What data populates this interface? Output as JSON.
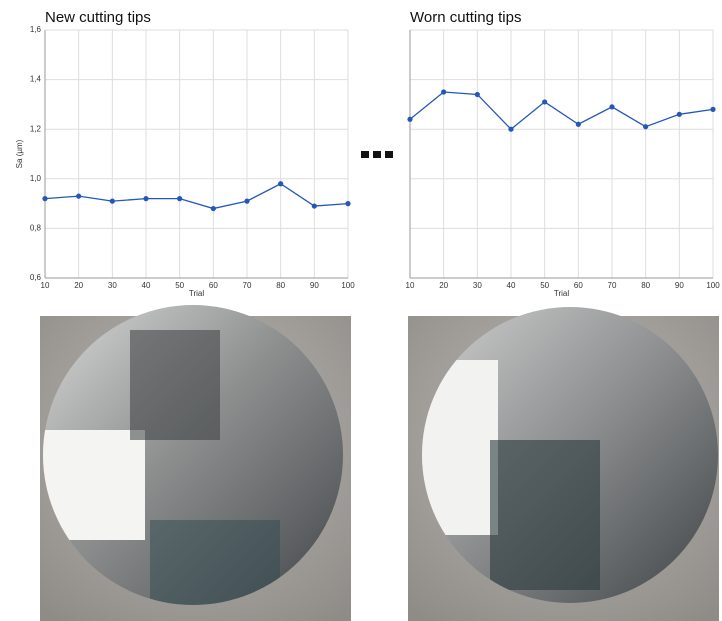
{
  "chart_data": [
    {
      "type": "line",
      "title": "New cutting tips",
      "y_label": "Sa (µm)",
      "x_label": "Trial",
      "x": [
        10,
        20,
        30,
        40,
        50,
        60,
        70,
        80,
        90,
        100
      ],
      "values": [
        0.92,
        0.93,
        0.91,
        0.92,
        0.92,
        0.88,
        0.91,
        0.98,
        0.89,
        0.9
      ],
      "color": "#2457b8",
      "xlim": [
        10,
        100
      ],
      "xticks": [
        10,
        20,
        30,
        40,
        50,
        60,
        70,
        80,
        90,
        100
      ],
      "ylim": [
        0.6,
        1.6
      ],
      "yticks": [
        {
          "value": 0.6,
          "label": "0,6"
        },
        {
          "value": 0.8,
          "label": "0,8"
        },
        {
          "value": 1.0,
          "label": "1,0"
        },
        {
          "value": 1.2,
          "label": "1,2"
        },
        {
          "value": 1.4,
          "label": "1,4"
        },
        {
          "value": 1.6,
          "label": "1,6"
        }
      ],
      "grid": true
    },
    {
      "type": "line",
      "title": "Worn cutting tips",
      "x_label": "Trial",
      "x": [
        10,
        20,
        30,
        40,
        50,
        60,
        70,
        80,
        90,
        100
      ],
      "values": [
        1.24,
        1.35,
        1.34,
        1.2,
        1.31,
        1.22,
        1.29,
        1.21,
        1.26,
        1.28
      ],
      "color": "#2457b8",
      "xlim": [
        10,
        100
      ],
      "xticks": [
        10,
        20,
        30,
        40,
        50,
        60,
        70,
        80,
        90,
        100
      ],
      "sharey": true,
      "grid": true
    }
  ]
}
